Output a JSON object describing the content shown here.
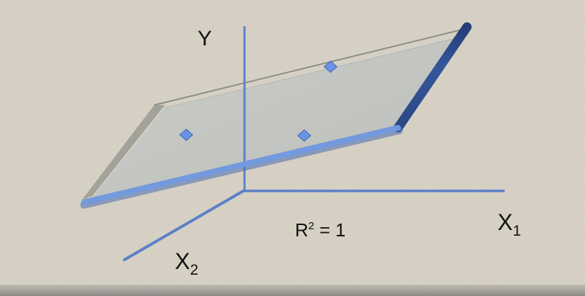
{
  "axes": {
    "y_label": "Y",
    "x1_label": "X",
    "x1_sub": "1",
    "x2_label": "X",
    "x2_sub": "2"
  },
  "annotation": {
    "r2_prefix": "R",
    "r2_sup": "2",
    "r2_suffix": " = 1"
  },
  "points": [
    {
      "x1": 0.45,
      "x2": 0.3,
      "y": 0.85
    },
    {
      "x1": 0.1,
      "x2": 0.5,
      "y": 0.35
    },
    {
      "x1": 0.55,
      "x2": 0.55,
      "y": 0.45
    }
  ],
  "colors": {
    "background": "#d8d3c6",
    "axis": "#5d80c9",
    "plane_edge_front": "#7096dc",
    "plane_edge_right": "#2b4a86",
    "plane_fill": "#bfc5c7",
    "plane_back_edge": "#8b8b88",
    "point": "#6a93e4"
  }
}
